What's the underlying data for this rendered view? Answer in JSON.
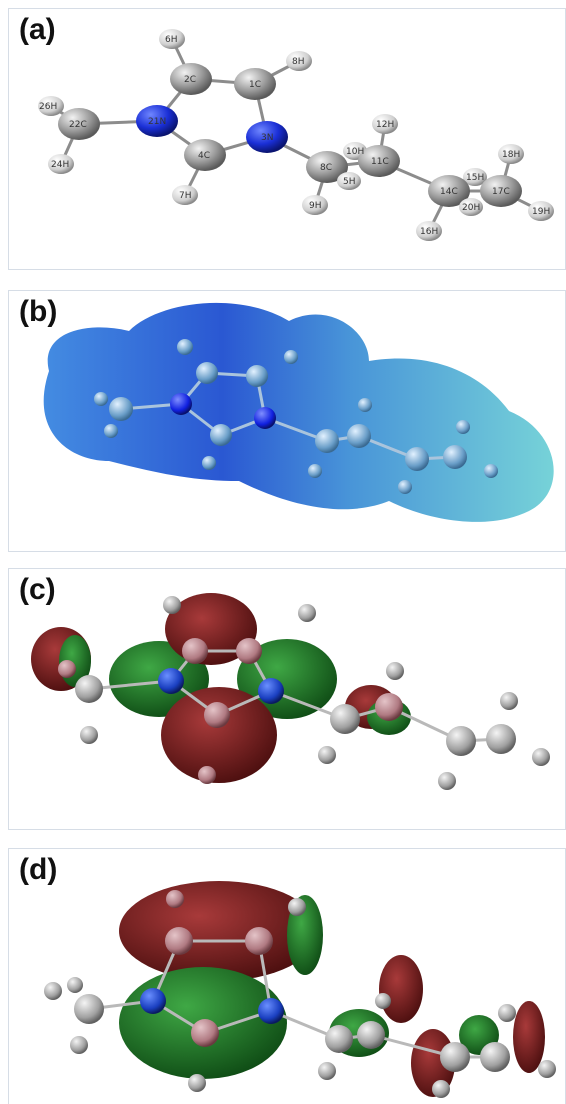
{
  "panels": {
    "a": {
      "label": "(a)",
      "atom_labels": [
        "6H",
        "8H",
        "2C",
        "1C",
        "26H",
        "22C",
        "21N",
        "3N",
        "24H",
        "4C",
        "7H",
        "12H",
        "10H",
        "11C",
        "8C",
        "5H",
        "9H",
        "18H",
        "15H",
        "14C",
        "17C",
        "20H",
        "19H",
        "16H"
      ]
    },
    "b": {
      "label": "(b)"
    },
    "c": {
      "label": "(c)"
    },
    "d": {
      "label": "(d)"
    }
  },
  "colors": {
    "carbon": "#9a9a9a",
    "hydrogen": "#d8d8d8",
    "nitrogen": "#1a2fd6",
    "esp_blue": "#2f6fd0",
    "esp_cyan": "#5fc4d6",
    "orbital_red": "#7a1f1f",
    "orbital_green": "#1f7a25"
  }
}
